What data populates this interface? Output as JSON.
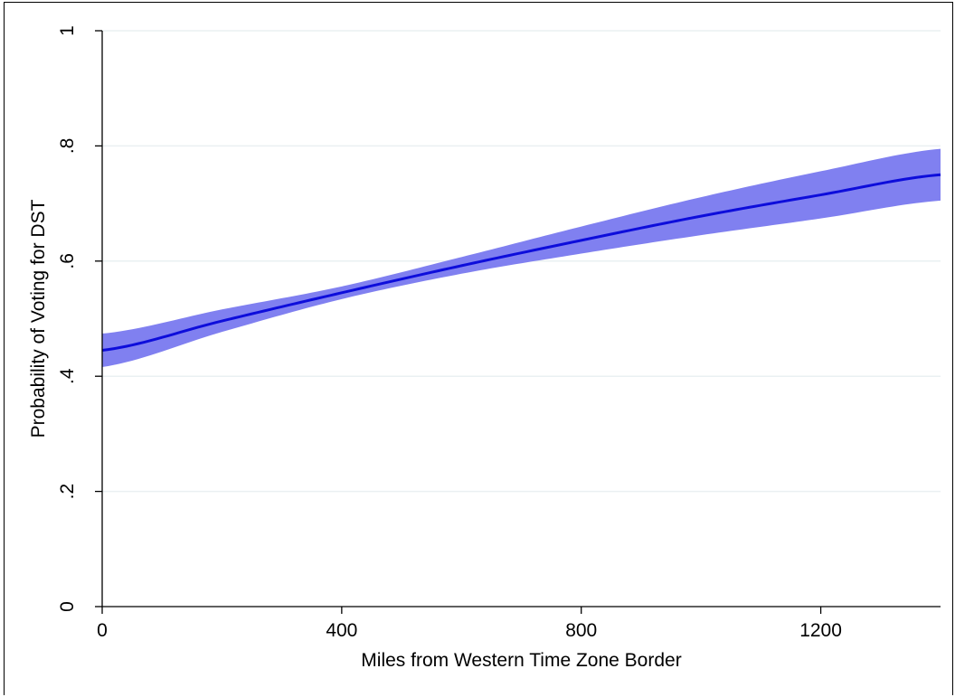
{
  "chart_data": {
    "type": "line",
    "title": "",
    "xlabel": "Miles from Western Time Zone Border",
    "ylabel": "Probability of Voting for DST",
    "xlim": [
      0,
      1400
    ],
    "ylim": [
      0,
      1
    ],
    "x_ticks": [
      0,
      400,
      800,
      1200
    ],
    "x_tick_labels": [
      "0",
      "400",
      "800",
      "1200"
    ],
    "y_ticks": [
      0,
      0.2,
      0.4,
      0.6,
      0.8,
      1
    ],
    "y_tick_labels": [
      "0",
      ".2",
      ".4",
      ".6",
      ".8",
      "1"
    ],
    "grid": "horizontal",
    "legend": "none",
    "series": [
      {
        "x": [
          0,
          200,
          400,
          600,
          800,
          1000,
          1200,
          1400
        ],
        "y": [
          0.445,
          0.496,
          0.545,
          0.592,
          0.636,
          0.678,
          0.715,
          0.75
        ],
        "ci_lower": [
          0.416,
          0.477,
          0.534,
          0.578,
          0.613,
          0.645,
          0.674,
          0.705
        ],
        "ci_upper": [
          0.474,
          0.516,
          0.556,
          0.607,
          0.66,
          0.711,
          0.756,
          0.795
        ]
      }
    ],
    "colors": {
      "line": "#0d0ddb",
      "band": "#8080f0",
      "grid": "#eaf0f2"
    }
  }
}
